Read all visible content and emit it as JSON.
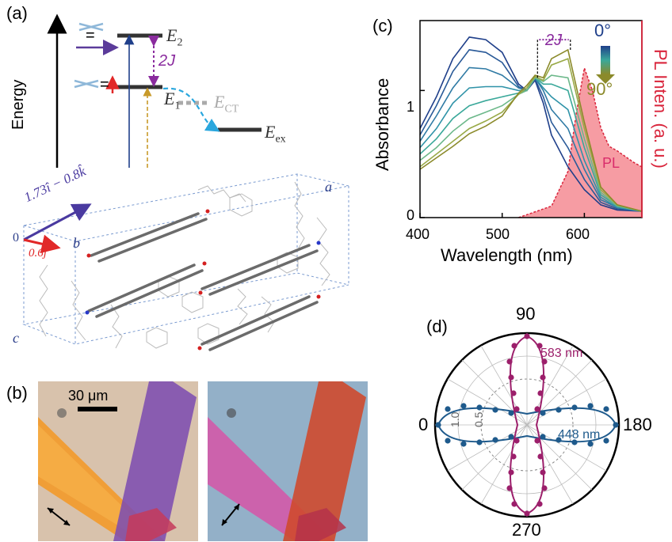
{
  "figure": {
    "panel_labels": {
      "a": "(a)",
      "b": "(b)",
      "c": "(c)",
      "d": "(d)"
    },
    "panel_a": {
      "energy_axis_label": "Energy",
      "level_E2": "E",
      "level_E2_sub": "2",
      "level_E1": "E",
      "level_E1_sub": "1",
      "level_ECT": "E",
      "level_ECT_sub": "CT",
      "level_Eex": "E",
      "level_Eex_sub": "ex",
      "splitting_label": "2J",
      "equals_sign": "=",
      "equals_sign_2": "=",
      "vector_1": "1.73î − 0.8k̂",
      "vector_2": "0.6ĵ",
      "axis_origin": "0",
      "axis_a": "a",
      "axis_b": "b",
      "axis_c": "c"
    },
    "panel_b": {
      "scale_bar_label": "30 μm"
    },
    "panel_c": {
      "xlabel": "Wavelength (nm)",
      "ylabel_left": "Absorbance",
      "ylabel_right": "PL Inten. (a. u.)",
      "pl_label": "PL",
      "splitting_label": "2J",
      "colorbar_top": "0°",
      "colorbar_bottom": "90°",
      "x_ticks": [
        "400",
        "500",
        "600"
      ],
      "y_ticks": [
        "0",
        "1"
      ]
    },
    "panel_d": {
      "angle_labels": {
        "top": "90",
        "left": "0",
        "right": "180",
        "bottom": "270"
      },
      "radial_labels": [
        "1.0",
        "0.5"
      ],
      "series_583": "583 nm",
      "series_448": "448 nm"
    },
    "colors": {
      "navy": "#1f3f8a",
      "purple": "#5b3b9a",
      "magenta": "#9c1f6b",
      "blue_dot": "#1e5a8c",
      "pl_fill": "#f58b93",
      "pl_red": "#d9243b",
      "olive": "#8b8a2a",
      "grey": "#9a9a9a"
    }
  },
  "chart_data": [
    {
      "type": "line",
      "title": "",
      "xlabel": "Wavelength (nm)",
      "ylabel": "Absorbance",
      "xlim": [
        400,
        670
      ],
      "ylim": [
        0,
        1.55
      ],
      "legend": "colorbar top-right: 0° (navy) to 90° (olive)",
      "series": [
        {
          "x": [
            400,
            420,
            440,
            460,
            480,
            500,
            520,
            530,
            540,
            550,
            560,
            580,
            600,
            620,
            640,
            670
          ],
          "values": [
            0.7,
            0.95,
            1.25,
            1.42,
            1.4,
            1.3,
            1.05,
            1.0,
            1.08,
            0.9,
            0.65,
            0.4,
            0.22,
            0.1,
            0.06,
            0.05
          ]
        },
        {
          "x": [
            400,
            420,
            440,
            460,
            480,
            500,
            520,
            530,
            540,
            550,
            560,
            580,
            600,
            620,
            640,
            670
          ],
          "values": [
            0.65,
            0.88,
            1.15,
            1.32,
            1.3,
            1.22,
            1.03,
            1.0,
            1.09,
            0.95,
            0.75,
            0.55,
            0.3,
            0.12,
            0.07,
            0.05
          ]
        },
        {
          "x": [
            400,
            420,
            440,
            460,
            480,
            500,
            520,
            530,
            540,
            550,
            560,
            580,
            600,
            620,
            640,
            670
          ],
          "values": [
            0.6,
            0.8,
            1.02,
            1.18,
            1.17,
            1.12,
            1.02,
            1.0,
            1.1,
            1.0,
            0.85,
            0.7,
            0.38,
            0.14,
            0.08,
            0.05
          ]
        },
        {
          "x": [
            400,
            420,
            440,
            460,
            480,
            500,
            520,
            530,
            540,
            550,
            560,
            580,
            600,
            620,
            640,
            670
          ],
          "values": [
            0.55,
            0.7,
            0.9,
            1.02,
            1.03,
            1.03,
            1.0,
            1.0,
            1.1,
            1.02,
            0.95,
            0.85,
            0.45,
            0.16,
            0.08,
            0.05
          ]
        },
        {
          "x": [
            400,
            420,
            440,
            460,
            480,
            500,
            520,
            530,
            540,
            550,
            560,
            580,
            600,
            620,
            640,
            670
          ],
          "values": [
            0.5,
            0.62,
            0.78,
            0.88,
            0.92,
            0.95,
            0.98,
            1.0,
            1.1,
            1.05,
            1.05,
            1.0,
            0.55,
            0.18,
            0.09,
            0.05
          ]
        },
        {
          "x": [
            400,
            420,
            440,
            460,
            480,
            500,
            520,
            530,
            540,
            550,
            560,
            580,
            600,
            620,
            640,
            670
          ],
          "values": [
            0.45,
            0.55,
            0.68,
            0.78,
            0.83,
            0.88,
            0.97,
            1.0,
            1.1,
            1.07,
            1.12,
            1.1,
            0.62,
            0.2,
            0.09,
            0.05
          ]
        },
        {
          "x": [
            400,
            420,
            440,
            460,
            480,
            500,
            520,
            530,
            540,
            550,
            560,
            580,
            600,
            620,
            640,
            670
          ],
          "values": [
            0.4,
            0.5,
            0.6,
            0.7,
            0.76,
            0.83,
            0.97,
            1.02,
            1.11,
            1.08,
            1.2,
            1.25,
            0.7,
            0.22,
            0.1,
            0.05
          ]
        },
        {
          "x": [
            400,
            420,
            440,
            460,
            480,
            500,
            520,
            530,
            540,
            550,
            560,
            580,
            600,
            620,
            640,
            670
          ],
          "values": [
            0.38,
            0.47,
            0.56,
            0.66,
            0.72,
            0.8,
            0.98,
            1.04,
            1.12,
            1.1,
            1.25,
            1.32,
            0.75,
            0.24,
            0.1,
            0.05
          ]
        }
      ],
      "pl_series": {
        "name": "PL",
        "x": [
          520,
          560,
          580,
          590,
          600,
          610,
          620,
          630,
          640,
          660,
          670
        ],
        "values": [
          0.0,
          0.1,
          0.4,
          0.9,
          1.3,
          1.1,
          0.78,
          0.62,
          0.58,
          0.48,
          0.44
        ]
      }
    },
    {
      "type": "scatter",
      "title": "",
      "polar": true,
      "angle_ticks": [
        90,
        180,
        270,
        0
      ],
      "radial_ticks": [
        0.5,
        1.0
      ],
      "series": [
        {
          "name": "583 nm",
          "shape": "lobes along 90–270"
        },
        {
          "name": "448 nm",
          "shape": "lobes along 0–180"
        }
      ]
    }
  ]
}
